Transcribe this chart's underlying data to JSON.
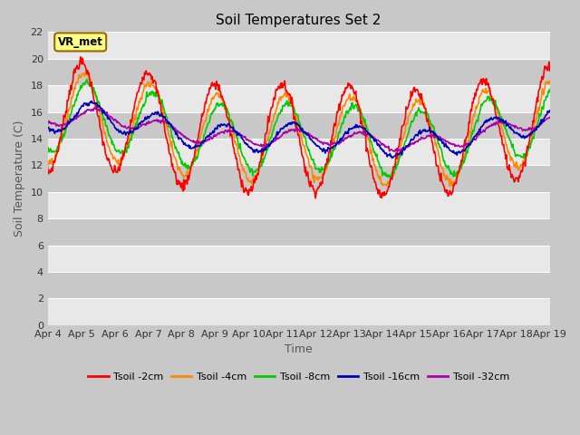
{
  "title": "Soil Temperatures Set 2",
  "xlabel": "Time",
  "ylabel": "Soil Temperature (C)",
  "ylim": [
    0,
    22
  ],
  "xlim": [
    0,
    360
  ],
  "xtick_labels": [
    "Apr 4",
    "Apr 5",
    "Apr 6",
    "Apr 7",
    "Apr 8",
    "Apr 9",
    "Apr 10",
    "Apr 11",
    "Apr 12",
    "Apr 13",
    "Apr 14",
    "Apr 15",
    "Apr 16",
    "Apr 17",
    "Apr 18",
    "Apr 19"
  ],
  "xtick_positions": [
    0,
    24,
    48,
    72,
    96,
    120,
    144,
    168,
    192,
    216,
    240,
    264,
    288,
    312,
    336,
    360
  ],
  "ytick_positions": [
    0,
    2,
    4,
    6,
    8,
    10,
    12,
    14,
    16,
    18,
    20,
    22
  ],
  "line_colors": [
    "#ff0000",
    "#ff8800",
    "#00cc00",
    "#0000bb",
    "#aa00aa"
  ],
  "line_labels": [
    "Tsoil -2cm",
    "Tsoil -4cm",
    "Tsoil -8cm",
    "Tsoil -16cm",
    "Tsoil -32cm"
  ],
  "fig_bg_color": "#c8c8c8",
  "plot_bg_color": "#d8d8d8",
  "white_band_color": "#e8e8e8",
  "dark_band_color": "#c8c8c8",
  "vr_met_label": "VR_met",
  "vr_met_bg": "#ffff88",
  "vr_met_border": "#996600",
  "n_points": 721,
  "period": 48,
  "base_temp": 14.5,
  "amp_2cm": 4.0,
  "amp_4cm": 3.2,
  "amp_8cm": 2.5,
  "amp_16cm": 1.0,
  "amp_32cm": 0.55,
  "phase_4cm": 2.0,
  "phase_8cm": 4.0,
  "phase_16cm": 7.0,
  "phase_32cm": 10.0,
  "title_fontsize": 11,
  "axis_label_fontsize": 9,
  "tick_fontsize": 8,
  "legend_fontsize": 8
}
